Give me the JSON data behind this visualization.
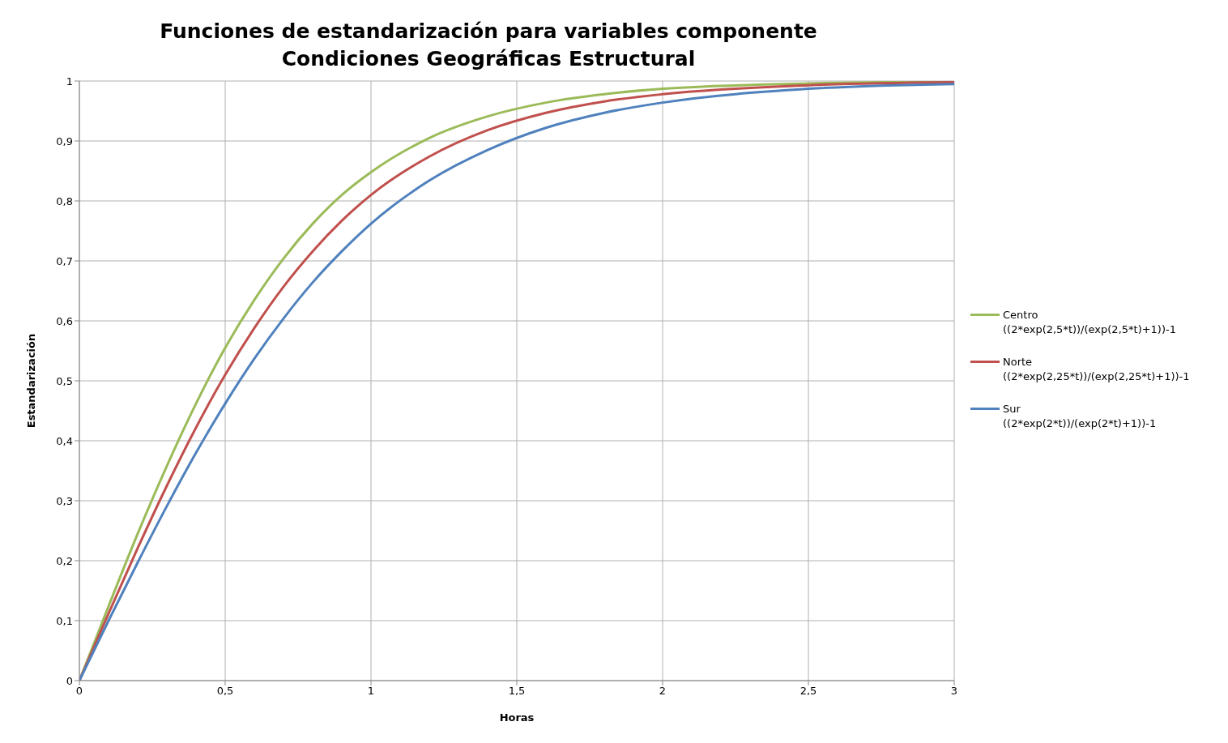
{
  "chart_data": {
    "type": "line",
    "title": "Funciones de estandarización para variables componente\nCondiciones Geográficas Estructural",
    "xlabel": "Horas",
    "ylabel": "Estandarización",
    "x": [
      0,
      0.1,
      0.2,
      0.3,
      0.4,
      0.5,
      0.6,
      0.7,
      0.8,
      0.9,
      1,
      1.2,
      1.4,
      1.6,
      1.8,
      2,
      2.5,
      3
    ],
    "series": [
      {
        "name": "Centro\n((2*exp(2,5*t))/(exp(2,5*t)+1))-1",
        "color": "#9bbb59",
        "values": [
          0,
          0.124,
          0.245,
          0.358,
          0.462,
          0.555,
          0.635,
          0.704,
          0.762,
          0.81,
          0.848,
          0.905,
          0.941,
          0.964,
          0.978,
          0.987,
          0.996,
          0.999
        ]
      },
      {
        "name": "Norte\n((2*exp(2,25*t))/(exp(2,25*t)+1))-1",
        "color": "#c0504d",
        "values": [
          0,
          0.112,
          0.221,
          0.325,
          0.422,
          0.51,
          0.588,
          0.657,
          0.716,
          0.767,
          0.81,
          0.874,
          0.918,
          0.947,
          0.966,
          0.978,
          0.993,
          0.998
        ]
      },
      {
        "name": "Sur\n((2*exp(2*t))/(exp(2*t)+1))-1",
        "color": "#4f81bd",
        "values": [
          0,
          0.1,
          0.197,
          0.291,
          0.38,
          0.462,
          0.537,
          0.604,
          0.664,
          0.716,
          0.762,
          0.834,
          0.885,
          0.922,
          0.947,
          0.964,
          0.987,
          0.995
        ]
      }
    ],
    "xlim": [
      0,
      3
    ],
    "xticks": [
      0,
      {
        "value": 0.5,
        "label": "0,5"
      },
      1,
      {
        "value": 1.5,
        "label": "1,5"
      },
      2,
      {
        "value": 2.5,
        "label": "2,5"
      },
      3
    ],
    "ylim": [
      0,
      1
    ],
    "yticks": [
      0,
      {
        "value": 0.1,
        "label": "0,1"
      },
      {
        "value": 0.2,
        "label": "0,2"
      },
      {
        "value": 0.3,
        "label": "0,3"
      },
      {
        "value": 0.4,
        "label": "0,4"
      },
      {
        "value": 0.5,
        "label": "0,5"
      },
      {
        "value": 0.6,
        "label": "0,6"
      },
      {
        "value": 0.7,
        "label": "0,7"
      },
      {
        "value": 0.8,
        "label": "0,8"
      },
      {
        "value": 0.9,
        "label": "0,9"
      },
      1
    ],
    "grid": true,
    "legend": "right",
    "marker": "none",
    "line_style": "solid"
  }
}
